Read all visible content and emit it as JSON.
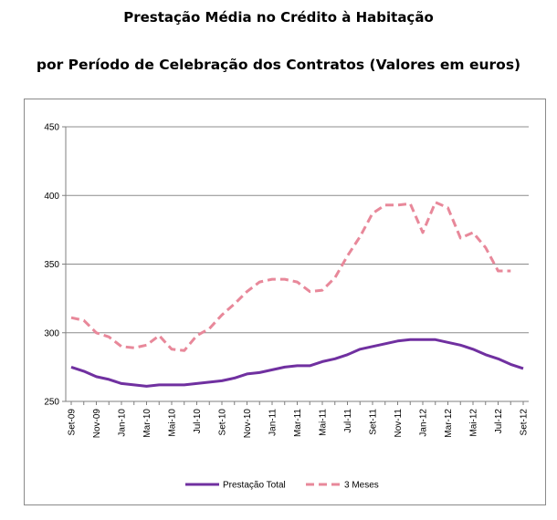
{
  "title": "Prestação Média no Crédito à Habitação",
  "subtitle": "por Período de Celebração dos Contratos (Valores em euros)",
  "chart_data": {
    "type": "line",
    "title": "Prestação Média no Crédito à Habitação",
    "subtitle": "por Período de Celebração dos Contratos (Valores em euros)",
    "xlabel": "",
    "ylabel": "",
    "ylim": [
      250,
      450
    ],
    "yticks": [
      250,
      300,
      350,
      400,
      450
    ],
    "grid": true,
    "legend_position": "bottom",
    "x": [
      "Set-09",
      "Out-09",
      "Nov-09",
      "Dez-09",
      "Jan-10",
      "Fev-10",
      "Mar-10",
      "Abr-10",
      "Mai-10",
      "Jun-10",
      "Jul-10",
      "Ago-10",
      "Set-10",
      "Out-10",
      "Nov-10",
      "Dez-10",
      "Jan-11",
      "Fev-11",
      "Mar-11",
      "Abr-11",
      "Mai-11",
      "Jun-11",
      "Jul-11",
      "Ago-11",
      "Set-11",
      "Out-11",
      "Nov-11",
      "Dez-11",
      "Jan-12",
      "Fev-12",
      "Mar-12",
      "Abr-12",
      "Mai-12",
      "Jun-12",
      "Jul-12",
      "Ago-12",
      "Set-12"
    ],
    "xtick_labels": [
      "Set-09",
      "Nov-09",
      "Jan-10",
      "Mar-10",
      "Mai-10",
      "Jul-10",
      "Set-10",
      "Nov-10",
      "Jan-11",
      "Mar-11",
      "Mai-11",
      "Jul-11",
      "Set-11",
      "Nov-11",
      "Jan-12",
      "Mar-12",
      "Mai-12",
      "Jul-12",
      "Set-12"
    ],
    "series": [
      {
        "name": "Prestação Total",
        "color": "#7030A0",
        "style": "solid",
        "values": [
          275,
          272,
          268,
          266,
          263,
          262,
          261,
          262,
          262,
          262,
          263,
          264,
          265,
          267,
          270,
          271,
          273,
          275,
          276,
          276,
          279,
          281,
          284,
          288,
          290,
          292,
          294,
          295,
          295,
          295,
          293,
          291,
          288,
          284,
          281,
          277,
          274
        ]
      },
      {
        "name": "3 Meses",
        "color": "#E8889A",
        "style": "dashed",
        "values": [
          311,
          309,
          300,
          297,
          290,
          289,
          291,
          298,
          288,
          287,
          298,
          303,
          313,
          321,
          330,
          337,
          339,
          339,
          337,
          330,
          331,
          340,
          356,
          370,
          387,
          393,
          393,
          394,
          373,
          395,
          391,
          369,
          373,
          362,
          345,
          345,
          null
        ]
      }
    ]
  }
}
